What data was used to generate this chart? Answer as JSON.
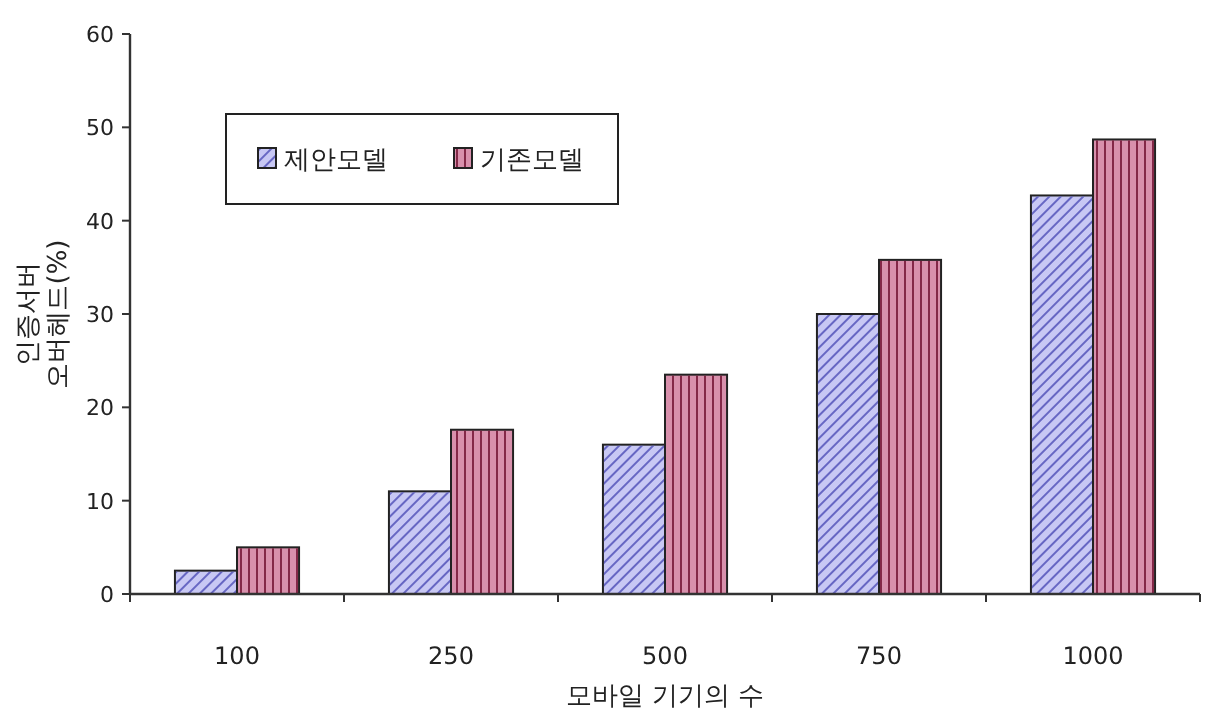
{
  "chart_data": {
    "type": "bar",
    "xlabel": "모바일 기기의 수",
    "ylabel": "인증서버\n오버헤드(%)",
    "categories": [
      "100",
      "250",
      "500",
      "750",
      "1000"
    ],
    "series": [
      {
        "name": "제안모델",
        "color": "#c8c8f4",
        "values": [
          2.5,
          11.0,
          16.0,
          30.0,
          42.7
        ]
      },
      {
        "name": "기존모델",
        "color": "#d890ac",
        "values": [
          5.0,
          17.6,
          23.5,
          35.8,
          48.7
        ]
      }
    ],
    "ylim": [
      0,
      60
    ],
    "yticks": [
      0,
      10,
      20,
      30,
      40,
      50,
      60
    ],
    "grid": false,
    "legend": "top left"
  }
}
